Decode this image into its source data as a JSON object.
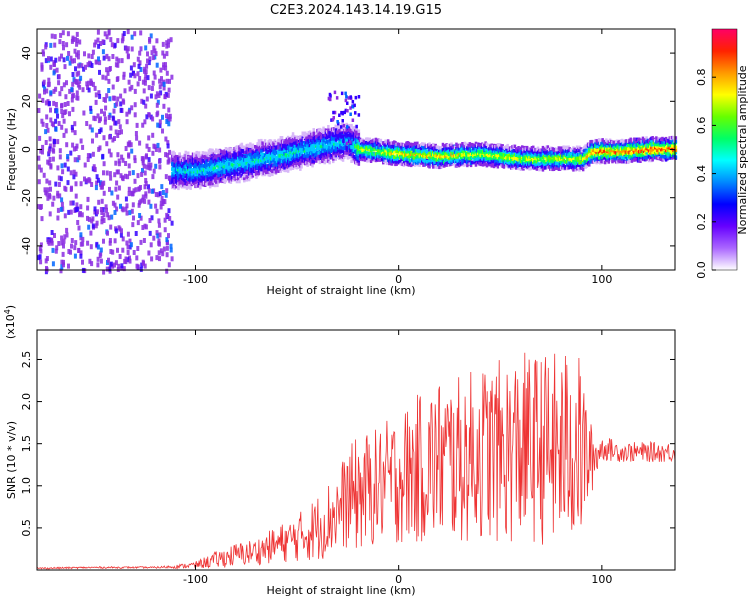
{
  "page_title": "C2E3.2024.143.14.19.G15",
  "colorbar": {
    "label": "Normalized spectral amplitude",
    "ticks": [
      "0.0",
      "0.2",
      "0.4",
      "0.6",
      "0.8"
    ],
    "tick_values": [
      0.0,
      0.2,
      0.4,
      0.6,
      0.8
    ],
    "range": [
      0.0,
      1.0
    ],
    "colormap": "rainbow",
    "colors": [
      "#ffffff",
      "#d8b8f8",
      "#8a2be2",
      "#3300ff",
      "#0066ff",
      "#00ccff",
      "#00ff66",
      "#66ff00",
      "#ffff00",
      "#ff9900",
      "#ff2200",
      "#ff0066"
    ]
  },
  "chart_data": [
    {
      "type": "heatmap",
      "title": "",
      "xlabel": "Height of straight line (km)",
      "ylabel": "Frequency (Hz)",
      "xlim": [
        -178,
        136
      ],
      "ylim": [
        -50,
        50
      ],
      "xticks": [
        "-100",
        "0",
        "100"
      ],
      "xtick_values": [
        -100,
        0,
        100
      ],
      "yticks": [
        "-40",
        "-20",
        "0",
        "20",
        "40"
      ],
      "ytick_values": [
        -40,
        -20,
        0,
        20,
        40
      ],
      "noise_region": {
        "x_from": -178,
        "x_to": -112,
        "mean_amplitude": 0.15
      },
      "ridge": [
        {
          "x": -112,
          "freq": -8,
          "amplitude": 0.45
        },
        {
          "x": -100,
          "freq": -8,
          "amplitude": 0.5
        },
        {
          "x": -80,
          "freq": -5,
          "amplitude": 0.5
        },
        {
          "x": -60,
          "freq": -2,
          "amplitude": 0.5
        },
        {
          "x": -40,
          "freq": 2,
          "amplitude": 0.5
        },
        {
          "x": -25,
          "freq": 4,
          "amplitude": 0.45
        },
        {
          "x": -20,
          "freq": 1,
          "amplitude": 0.65
        },
        {
          "x": 0,
          "freq": -1,
          "amplitude": 0.75
        },
        {
          "x": 20,
          "freq": -2,
          "amplitude": 0.75
        },
        {
          "x": 40,
          "freq": -1,
          "amplitude": 0.7
        },
        {
          "x": 60,
          "freq": -3,
          "amplitude": 0.7
        },
        {
          "x": 80,
          "freq": -3,
          "amplitude": 0.7
        },
        {
          "x": 90,
          "freq": -3,
          "amplitude": 0.7
        },
        {
          "x": 95,
          "freq": 0,
          "amplitude": 0.85
        },
        {
          "x": 110,
          "freq": 0,
          "amplitude": 0.85
        },
        {
          "x": 125,
          "freq": 1,
          "amplitude": 0.9
        },
        {
          "x": 136,
          "freq": 1,
          "amplitude": 0.9
        }
      ],
      "burst": {
        "x_from": -35,
        "x_to": -20,
        "freq_from": 3,
        "freq_to": 25
      }
    },
    {
      "type": "line",
      "title": "",
      "xlabel": "Height of straight line (km)",
      "ylabel": "SNR (10 * v/v)",
      "scale_label": "(x10",
      "scale_exponent": "4",
      "xlim": [
        -178,
        136
      ],
      "ylim": [
        0,
        2.85
      ],
      "xticks": [
        "-100",
        "0",
        "100"
      ],
      "xtick_values": [
        -100,
        0,
        100
      ],
      "yticks": [
        "0.5",
        "1.0",
        "1.5",
        "2.0",
        "2.5"
      ],
      "ytick_values": [
        0.5,
        1.0,
        1.5,
        2.0,
        2.5
      ],
      "series": [
        {
          "color": "#ee3333",
          "x": [
            -178,
            -150,
            -120,
            -110,
            -100,
            -90,
            -80,
            -70,
            -60,
            -50,
            -40,
            -30,
            -25,
            -20,
            -10,
            0,
            10,
            20,
            30,
            40,
            50,
            60,
            70,
            80,
            85,
            90,
            95,
            100,
            110,
            120,
            136
          ],
          "y": [
            0.02,
            0.03,
            0.03,
            0.04,
            0.06,
            0.12,
            0.18,
            0.22,
            0.3,
            0.38,
            0.5,
            0.7,
            0.85,
            0.9,
            1.0,
            1.1,
            1.2,
            1.3,
            1.3,
            1.4,
            1.4,
            1.45,
            1.45,
            1.4,
            1.5,
            1.4,
            1.3,
            1.45,
            1.4,
            1.4,
            1.4
          ],
          "spread": [
            0.01,
            0.01,
            0.01,
            0.02,
            0.04,
            0.1,
            0.14,
            0.16,
            0.22,
            0.28,
            0.4,
            0.5,
            0.6,
            0.7,
            0.7,
            0.8,
            0.9,
            1.0,
            1.0,
            1.05,
            1.1,
            1.15,
            1.15,
            1.2,
            1.2,
            1.1,
            0.4,
            0.15,
            0.12,
            0.12,
            0.12
          ]
        }
      ]
    }
  ]
}
